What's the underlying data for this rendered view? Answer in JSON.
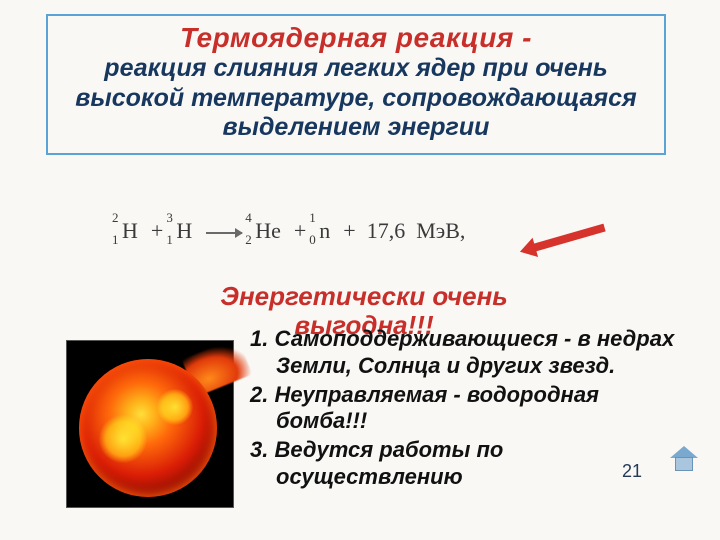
{
  "definition": {
    "title": "Термоядерная реакция -",
    "body": "реакция слияния легких ядер при очень высокой температуре, сопровождающаяся выделением энергии",
    "border_color": "#5aa3d6",
    "title_color": "#c82f2a",
    "body_color": "#17375e"
  },
  "reaction": {
    "terms": [
      {
        "element": "H",
        "mass": "2",
        "charge": "1"
      },
      {
        "element": "H",
        "mass": "3",
        "charge": "1"
      },
      {
        "element": "He",
        "mass": "4",
        "charge": "2"
      },
      {
        "element": "n",
        "mass": "1",
        "charge": "0"
      }
    ],
    "energy": "17,6",
    "energy_unit": "МэВ,",
    "arrow_color": "#d6332d"
  },
  "benefit": {
    "line1": "Энергетически очень",
    "line2": "выгодна!!!",
    "color": "#c82f2a"
  },
  "list": {
    "items": [
      {
        "num": "1.",
        "text": "Самоподдерживающиеся - в недрах Земли, Солнца и других звезд."
      },
      {
        "num": "2.",
        "text": "Неуправляемая - водородная бомба!!!"
      },
      {
        "num": "3.",
        "text": "Ведутся работы по осуществлению"
      }
    ]
  },
  "page_number": "21",
  "icons": {
    "home": "home-icon"
  }
}
